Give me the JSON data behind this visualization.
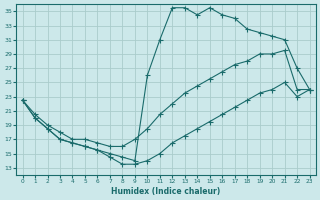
{
  "xlabel": "Humidex (Indice chaleur)",
  "bg_color": "#cce8ea",
  "grid_color": "#aacccc",
  "line_color": "#1a6b6b",
  "xlim": [
    -0.5,
    23.5
  ],
  "ylim": [
    12,
    36
  ],
  "xticks": [
    0,
    1,
    2,
    3,
    4,
    5,
    6,
    7,
    8,
    9,
    10,
    11,
    12,
    13,
    14,
    15,
    16,
    17,
    18,
    19,
    20,
    21,
    22,
    23
  ],
  "yticks": [
    13,
    15,
    17,
    19,
    21,
    23,
    25,
    27,
    29,
    31,
    33,
    35
  ],
  "line1_x": [
    0,
    1,
    2,
    3,
    4,
    5,
    6,
    7,
    8,
    9,
    10,
    11,
    12,
    13,
    14,
    15,
    16,
    17,
    18,
    19,
    20,
    21,
    22,
    23
  ],
  "line1_y": [
    22.5,
    20.0,
    18.5,
    17.0,
    16.5,
    16.0,
    15.5,
    15.0,
    14.5,
    14.0,
    26.0,
    31.0,
    35.5,
    35.5,
    34.5,
    35.5,
    34.5,
    34.0,
    32.5,
    32.0,
    31.5,
    31.0,
    27.0,
    24.0
  ],
  "line2_x": [
    0,
    1,
    2,
    3,
    4,
    5,
    6,
    7,
    8,
    9,
    10,
    11,
    12,
    13,
    14,
    15,
    16,
    17,
    18,
    19,
    20,
    21,
    22,
    23
  ],
  "line2_y": [
    22.5,
    20.5,
    19.0,
    18.0,
    17.0,
    17.0,
    16.5,
    16.0,
    16.0,
    17.0,
    18.5,
    20.5,
    22.0,
    23.5,
    24.5,
    25.5,
    26.5,
    27.5,
    28.0,
    29.0,
    29.0,
    29.5,
    24.0,
    24.0
  ],
  "line3_x": [
    0,
    1,
    2,
    3,
    4,
    5,
    6,
    7,
    8,
    9,
    10,
    11,
    12,
    13,
    14,
    15,
    16,
    17,
    18,
    19,
    20,
    21,
    22,
    23
  ],
  "line3_y": [
    22.5,
    20.0,
    18.5,
    17.0,
    16.5,
    16.0,
    15.5,
    14.5,
    13.5,
    13.5,
    14.0,
    15.0,
    16.5,
    17.5,
    18.5,
    19.5,
    20.5,
    21.5,
    22.5,
    23.5,
    24.0,
    25.0,
    23.0,
    24.0
  ]
}
